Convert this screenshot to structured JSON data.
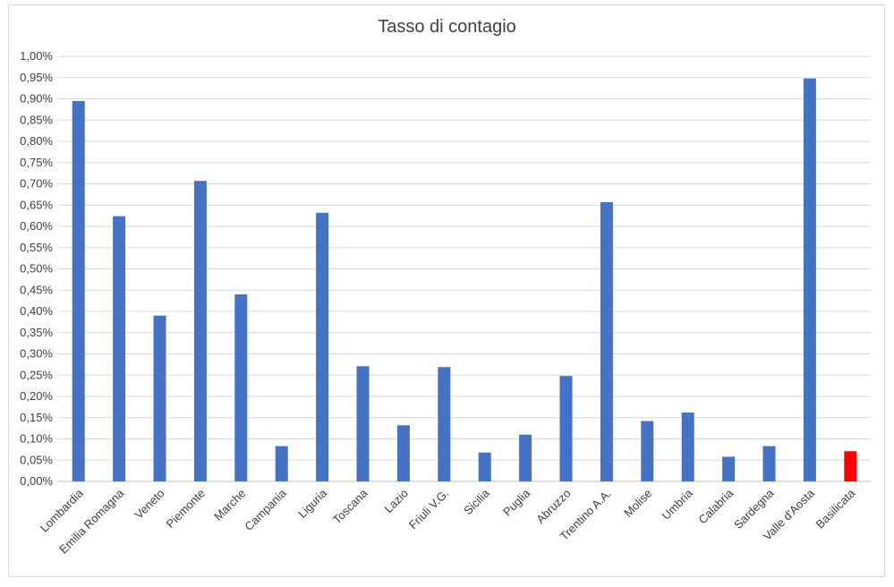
{
  "chart_data": {
    "type": "bar",
    "title": "Tasso di contagio",
    "xlabel": "",
    "ylabel": "",
    "ylim": [
      0,
      1.0
    ],
    "y_tick_step": 0.05,
    "y_tick_format": "percent-comma-2",
    "grid": true,
    "legend": "none",
    "categories": [
      "Lombardia",
      "Emilia Romagna",
      "Veneto",
      "Piemonte",
      "Marche",
      "Campania",
      "Liguria",
      "Toscana",
      "Lazio",
      "Friuli V.G.",
      "Sicilia",
      "Puglia",
      "Abruzzo",
      "Trentino A.A.",
      "Molise",
      "Umbria",
      "Calabria",
      "Sardegna",
      "Valle d'Aosta",
      "Basilicata"
    ],
    "values": [
      0.895,
      0.624,
      0.39,
      0.707,
      0.44,
      0.083,
      0.632,
      0.271,
      0.132,
      0.269,
      0.068,
      0.11,
      0.248,
      0.657,
      0.142,
      0.162,
      0.058,
      0.083,
      0.948,
      0.071
    ],
    "colors": {
      "default": "#4472c4",
      "highlight": "#ff0000",
      "grid": "#d9d9d9",
      "text": "#404040"
    },
    "highlight_category": "Basilicata"
  }
}
